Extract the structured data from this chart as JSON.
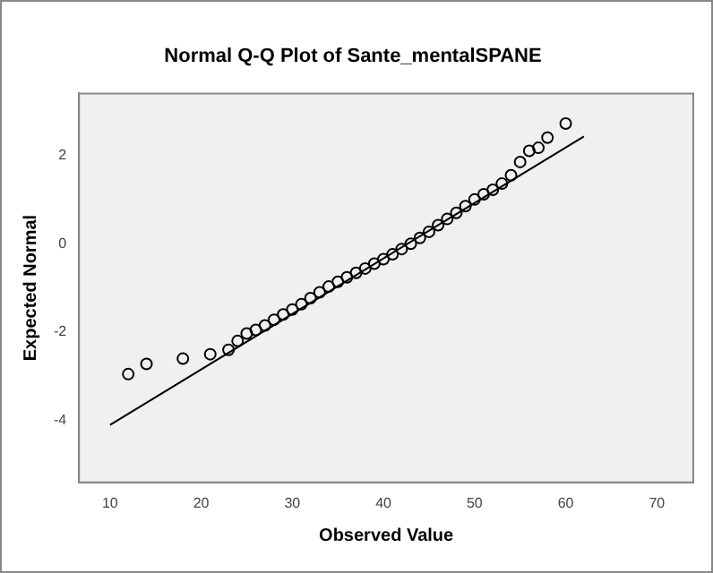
{
  "chart_data": {
    "type": "scatter",
    "title": "Normal Q-Q Plot of Sante_mentalSPANE",
    "xlabel": "Observed Value",
    "ylabel": "Expected Normal",
    "xlim": [
      6.6,
      74
    ],
    "xticks": [
      10,
      20,
      30,
      40,
      50,
      60,
      70
    ],
    "ylim": [
      -5.4,
      3.4
    ],
    "yticks": [
      -4,
      -2,
      0,
      2
    ],
    "grid": false,
    "legend": false,
    "series": [
      {
        "type": "scatter",
        "marker": "circle",
        "color": "#000000",
        "x": [
          12,
          14,
          18,
          21,
          23,
          24,
          25,
          26,
          27,
          28,
          29,
          30,
          31,
          32,
          33,
          34,
          35,
          36,
          37,
          38,
          39,
          40,
          41,
          42,
          43,
          44,
          45,
          46,
          47,
          48,
          49,
          50,
          51,
          52,
          53,
          54,
          55,
          56,
          57,
          58,
          60
        ],
        "values": [
          -2.95,
          -2.72,
          -2.6,
          -2.5,
          -2.4,
          -2.2,
          -2.03,
          -1.95,
          -1.85,
          -1.72,
          -1.6,
          -1.49,
          -1.37,
          -1.23,
          -1.1,
          -0.97,
          -0.86,
          -0.76,
          -0.66,
          -0.56,
          -0.45,
          -0.35,
          -0.24,
          -0.12,
          0.0,
          0.13,
          0.27,
          0.42,
          0.56,
          0.7,
          0.85,
          1.0,
          1.12,
          1.22,
          1.36,
          1.55,
          1.85,
          2.1,
          2.17,
          2.4,
          2.72
        ]
      },
      {
        "type": "line",
        "marker": "none",
        "line_style": "solid",
        "color": "#000000",
        "x": [
          10,
          62
        ],
        "values": [
          -4.1,
          2.43
        ]
      }
    ]
  }
}
